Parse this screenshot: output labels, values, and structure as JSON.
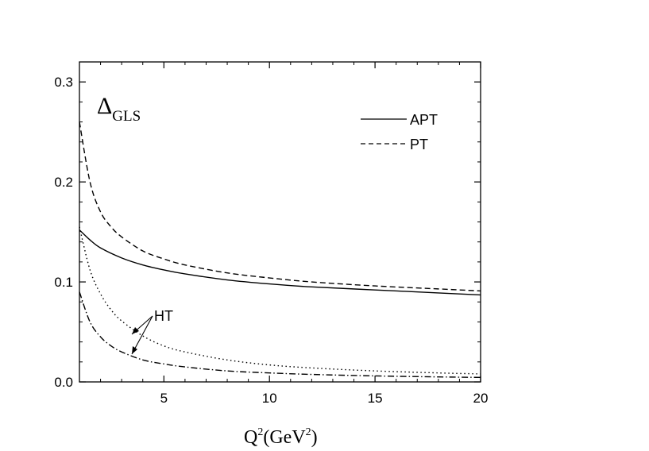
{
  "chart_data": {
    "type": "line",
    "title": "",
    "panel_label": {
      "main": "Δ",
      "subscript": "GLS"
    },
    "xlabel": {
      "main": "Q",
      "sup1": "2",
      "paren": "(GeV",
      "sup2": "2",
      "close": ")"
    },
    "ylabel": "",
    "xlim": [
      1,
      20
    ],
    "ylim": [
      0,
      0.32
    ],
    "x_ticks": [
      5,
      10,
      15,
      20
    ],
    "x_tick_labels": [
      "5",
      "10",
      "15",
      "20"
    ],
    "y_ticks": [
      0.0,
      0.1,
      0.2,
      0.3
    ],
    "y_tick_labels": [
      "0.0",
      "0.1",
      "0.2",
      "0.3"
    ],
    "legend_position": "top-right",
    "series": [
      {
        "name": "APT",
        "style": "solid",
        "x": [
          1,
          1.5,
          2,
          3,
          4,
          5,
          6,
          8,
          10,
          12,
          15,
          18,
          20
        ],
        "y": [
          0.152,
          0.142,
          0.134,
          0.124,
          0.117,
          0.112,
          0.108,
          0.102,
          0.098,
          0.095,
          0.092,
          0.089,
          0.087
        ]
      },
      {
        "name": "PT",
        "style": "dashed",
        "x": [
          1,
          1.5,
          2,
          2.5,
          3,
          4,
          5,
          6,
          8,
          10,
          12,
          15,
          18,
          20
        ],
        "y": [
          0.26,
          0.2,
          0.17,
          0.155,
          0.145,
          0.131,
          0.123,
          0.117,
          0.109,
          0.104,
          0.1,
          0.096,
          0.093,
          0.091
        ]
      },
      {
        "name": "",
        "style": "dotted",
        "x": [
          1,
          1.5,
          2,
          2.5,
          3,
          4,
          5,
          6,
          8,
          10,
          12,
          15,
          18,
          20
        ],
        "y": [
          0.155,
          0.112,
          0.088,
          0.072,
          0.061,
          0.046,
          0.036,
          0.03,
          0.022,
          0.017,
          0.014,
          0.011,
          0.009,
          0.008
        ]
      },
      {
        "name": "",
        "style": "dashdot",
        "x": [
          1,
          1.5,
          2,
          2.5,
          3,
          4,
          5,
          6,
          8,
          10,
          12,
          15,
          18,
          20
        ],
        "y": [
          0.09,
          0.06,
          0.045,
          0.036,
          0.03,
          0.022,
          0.018,
          0.015,
          0.011,
          0.009,
          0.0075,
          0.006,
          0.005,
          0.0045
        ]
      }
    ],
    "annotation": {
      "text": "HT"
    }
  }
}
